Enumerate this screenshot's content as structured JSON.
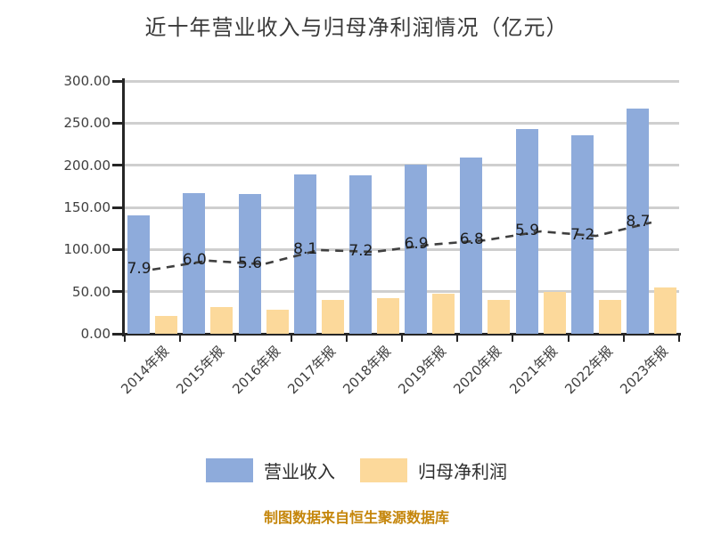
{
  "page": {
    "background": "#ffffff"
  },
  "chart_data": {
    "type": "bar+line",
    "title": "近十年营业收入与归母净利润情况（亿元）",
    "categories": [
      "2014年报",
      "2015年报",
      "2016年报",
      "2017年报",
      "2018年报",
      "2019年报",
      "2020年报",
      "2021年报",
      "2022年报",
      "2023年报"
    ],
    "series": [
      {
        "name": "营业收入",
        "type": "bar",
        "color": "#8eabdb",
        "values": [
          140,
          167,
          166,
          189,
          188,
          201,
          209,
          243,
          236,
          267
        ]
      },
      {
        "name": "归母净利润",
        "type": "bar",
        "color": "#fcd99b",
        "values": [
          21,
          32,
          29,
          40,
          42,
          48,
          40,
          50,
          40,
          55
        ]
      },
      {
        "name": "",
        "type": "line",
        "color": "#3f3f3f",
        "dashed": true,
        "data_labels": [
          "7.9",
          "6.0",
          "5.6",
          "8.1",
          "7.2",
          "6.9",
          "6.8",
          "5.9",
          "7.2",
          "8.7"
        ],
        "values": [
          7.9,
          6.0,
          5.6,
          8.1,
          7.2,
          6.9,
          6.8,
          5.9,
          7.2,
          8.7
        ],
        "plot_y_pct": [
          25.4,
          28.9,
          27.5,
          33.1,
          32.4,
          35.2,
          37.0,
          40.5,
          38.7,
          44.0
        ]
      }
    ],
    "y_axis": {
      "min": 0,
      "max": 300,
      "tick_step": 50,
      "tick_labels": [
        "300.00",
        "250.00",
        "200.00",
        "150.00",
        "100.00",
        "50.00",
        "0.00"
      ]
    },
    "grid": true,
    "legend_position": "bottom",
    "axis_color": "#262626",
    "grid_color": "#cfcfcf"
  },
  "footer": {
    "source_note": "制图数据来自恒生聚源数据库",
    "color": "#c5860b"
  }
}
